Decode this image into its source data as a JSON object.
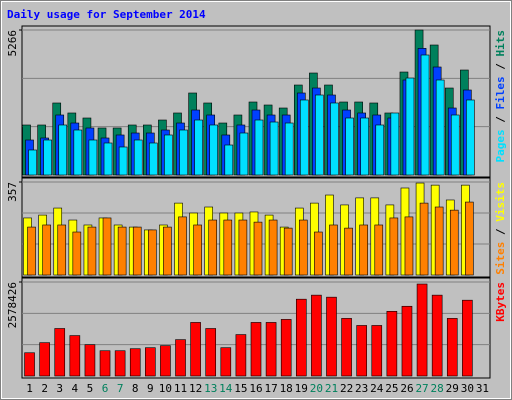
{
  "title": "Daily usage for September 2014",
  "legend_separator": " / ",
  "chart_data": [
    {
      "type": "bar",
      "ylim": [
        0,
        5266
      ],
      "yticks": [
        5266
      ],
      "grid": true,
      "series": [
        {
          "name": "Hits",
          "color": "#00805c",
          "values": [
            1816,
            1816,
            2615,
            2252,
            2070,
            1707,
            1707,
            1816,
            1816,
            1997,
            2252,
            2978,
            2615,
            1888,
            2179,
            2651,
            2542,
            2433,
            3268,
            3704,
            3268,
            2651,
            2651,
            2615,
            2252,
            3740,
            5266,
            4721,
            3159,
            3813,
            null
          ]
        },
        {
          "name": "Files",
          "color": "#0040ff",
          "values": [
            1271,
            1344,
            2179,
            1888,
            1707,
            1344,
            1453,
            1525,
            1525,
            1634,
            1888,
            2360,
            2179,
            1453,
            1816,
            2360,
            2179,
            2179,
            2978,
            3159,
            2905,
            2360,
            2252,
            2179,
            2070,
            3450,
            4600,
            3922,
            2433,
            3087,
            null
          ]
        },
        {
          "name": "Pages",
          "color": "#00e0ff",
          "values": [
            908,
            1271,
            1816,
            1634,
            1271,
            1162,
            1017,
            1271,
            1162,
            1453,
            1634,
            1997,
            1816,
            1089,
            1525,
            1997,
            1924,
            1888,
            2724,
            2905,
            2615,
            2070,
            2070,
            1816,
            2252,
            3522,
            4358,
            3450,
            2179,
            2724,
            null
          ]
        }
      ]
    },
    {
      "type": "bar",
      "ylim": [
        0,
        357
      ],
      "yticks": [
        357
      ],
      "grid": true,
      "series": [
        {
          "name": "Visits",
          "color": "#ffff00",
          "values": [
            219,
            230,
            257,
            211,
            192,
            219,
            192,
            184,
            173,
            192,
            276,
            238,
            261,
            238,
            238,
            242,
            230,
            184,
            257,
            276,
            307,
            269,
            296,
            296,
            269,
            334,
            353,
            345,
            288,
            345,
            null
          ]
        },
        {
          "name": "Sites",
          "color": "#ff8000",
          "values": [
            184,
            192,
            192,
            165,
            184,
            219,
            184,
            184,
            173,
            184,
            223,
            192,
            211,
            211,
            211,
            203,
            211,
            180,
            211,
            165,
            192,
            180,
            192,
            192,
            219,
            223,
            276,
            261,
            249,
            280,
            null
          ]
        }
      ]
    },
    {
      "type": "bar",
      "ylim": [
        0,
        2578426
      ],
      "yticks": [
        2578426
      ],
      "grid": true,
      "categories": [
        "1",
        "2",
        "3",
        "4",
        "5",
        "6",
        "7",
        "8",
        "9",
        "10",
        "11",
        "12",
        "13",
        "14",
        "15",
        "16",
        "17",
        "18",
        "19",
        "20",
        "21",
        "22",
        "23",
        "24",
        "25",
        "26",
        "27",
        "28",
        "29",
        "30",
        "31"
      ],
      "highlight": [
        "6",
        "7",
        "13",
        "14",
        "20",
        "21",
        "27",
        "28"
      ],
      "highlight_color": "#00805c",
      "series": [
        {
          "name": "KBytes",
          "color": "#ff0000",
          "values": [
            637683,
            914925,
            1303075,
            1109000,
            859475,
            693125,
            693125,
            748575,
            776300,
            831750,
            998100,
            1469425,
            1303075,
            776300,
            1136725,
            1469425,
            1469425,
            1552600,
            2107100,
            2218000,
            2162550,
            1580325,
            1386250,
            1386250,
            1774400,
            1913025,
            2523000,
            2218000,
            1580325,
            2079375,
            null
          ]
        }
      ]
    }
  ]
}
